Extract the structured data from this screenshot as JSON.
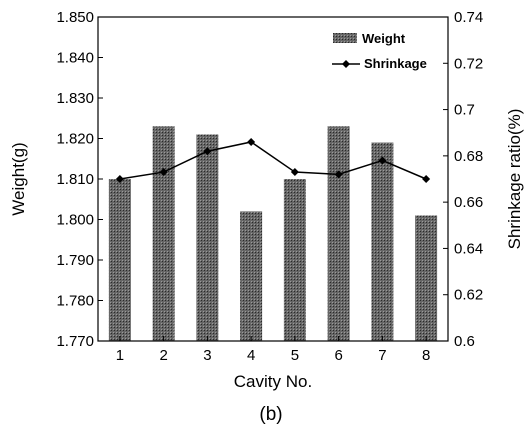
{
  "chart_data": {
    "type": "bar",
    "categories": [
      "1",
      "2",
      "3",
      "4",
      "5",
      "6",
      "7",
      "8"
    ],
    "xlabel": "Cavity No.",
    "ylabel": "Weight(g)",
    "y2label": "Shrinkage ratio(%)",
    "ylim": [
      1.77,
      1.85
    ],
    "y2lim": [
      0.6,
      0.74
    ],
    "yticks": [
      "1.770",
      "1.780",
      "1.790",
      "1.800",
      "1.810",
      "1.820",
      "1.830",
      "1.840",
      "1.850"
    ],
    "y2ticks": [
      "0.6",
      "0.62",
      "0.64",
      "0.66",
      "0.68",
      "0.7",
      "0.72",
      "0.74"
    ],
    "series": [
      {
        "name": "Weight",
        "type": "bar",
        "axis": "left",
        "color": "#555555",
        "values": [
          1.81,
          1.823,
          1.821,
          1.802,
          1.81,
          1.823,
          1.819,
          1.801
        ]
      },
      {
        "name": "Shrinkage",
        "type": "line",
        "axis": "right",
        "color": "#000000",
        "marker": "diamond",
        "values": [
          0.67,
          0.673,
          0.682,
          0.686,
          0.673,
          0.672,
          0.678,
          0.67
        ]
      }
    ],
    "legend_position": "top-right",
    "grid": false,
    "caption": "(b)"
  }
}
